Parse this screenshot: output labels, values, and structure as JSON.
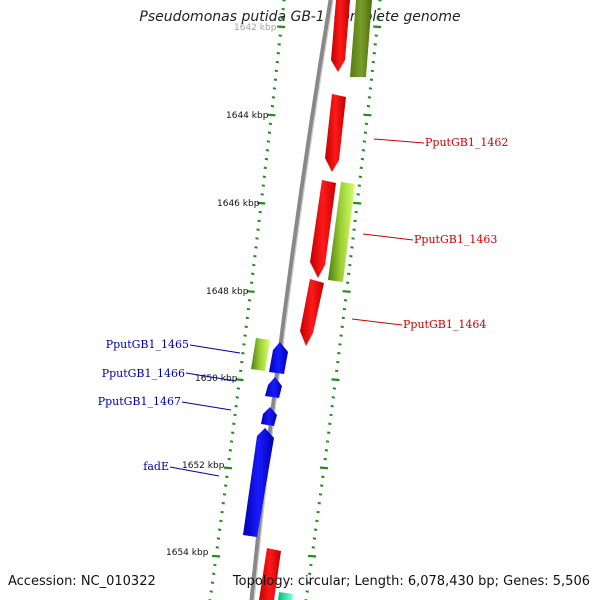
{
  "title": "Pseudomonas putida GB-1, complete genome",
  "accession": "Accession: NC_010322",
  "stats": "Topology: circular; Length: 6,078,430 bp; Genes: 5,506",
  "ruler": {
    "labels": [
      "1642 kbp",
      "1644 kbp",
      "1646 kbp",
      "1648 kbp",
      "1650 kbp",
      "1652 kbp",
      "1654 kbp"
    ]
  },
  "genes": [
    {
      "label": "PputGB1_1462",
      "strand": "forward",
      "color": "#cc0000"
    },
    {
      "label": "PputGB1_1463",
      "strand": "forward",
      "color": "#cc0000"
    },
    {
      "label": "PputGB1_1464",
      "strand": "forward",
      "color": "#cc0000"
    },
    {
      "label": "PputGB1_1465",
      "strand": "reverse",
      "color": "#0000aa"
    },
    {
      "label": "PputGB1_1466",
      "strand": "reverse",
      "color": "#0000aa"
    },
    {
      "label": "PputGB1_1467",
      "strand": "reverse",
      "color": "#0000aa"
    },
    {
      "label": "fadE",
      "strand": "reverse",
      "color": "#0000aa"
    }
  ],
  "colors": {
    "cds_forward": "#ff0000",
    "cds_reverse": "#0000ff",
    "feature_green": "#66aa22",
    "ruler_tick": "#228b22",
    "backbone": "#888888"
  }
}
